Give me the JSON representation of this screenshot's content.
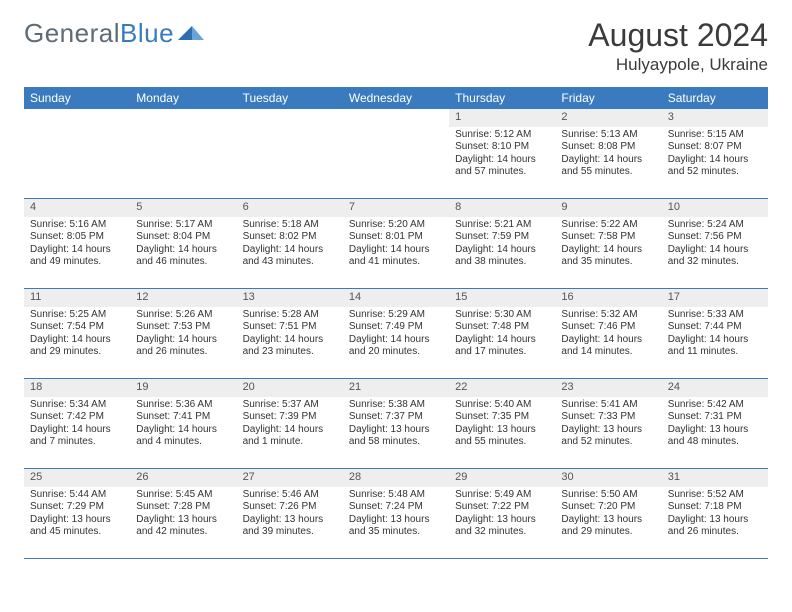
{
  "brand": {
    "text_a": "General",
    "text_b": "Blue"
  },
  "title": "August 2024",
  "location": "Hulyaypole, Ukraine",
  "colors": {
    "header_bar": "#3a7bbf",
    "daynum_bg": "#eeeeee",
    "cell_border": "#3a7bbf",
    "text": "#333333",
    "logo_grey": "#5f6b74",
    "logo_blue": "#3a7bbf"
  },
  "dow": [
    "Sunday",
    "Monday",
    "Tuesday",
    "Wednesday",
    "Thursday",
    "Friday",
    "Saturday"
  ],
  "leading_blanks": 4,
  "days": [
    {
      "n": 1,
      "sunrise": "5:12 AM",
      "sunset": "8:10 PM",
      "daylight": "14 hours and 57 minutes."
    },
    {
      "n": 2,
      "sunrise": "5:13 AM",
      "sunset": "8:08 PM",
      "daylight": "14 hours and 55 minutes."
    },
    {
      "n": 3,
      "sunrise": "5:15 AM",
      "sunset": "8:07 PM",
      "daylight": "14 hours and 52 minutes."
    },
    {
      "n": 4,
      "sunrise": "5:16 AM",
      "sunset": "8:05 PM",
      "daylight": "14 hours and 49 minutes."
    },
    {
      "n": 5,
      "sunrise": "5:17 AM",
      "sunset": "8:04 PM",
      "daylight": "14 hours and 46 minutes."
    },
    {
      "n": 6,
      "sunrise": "5:18 AM",
      "sunset": "8:02 PM",
      "daylight": "14 hours and 43 minutes."
    },
    {
      "n": 7,
      "sunrise": "5:20 AM",
      "sunset": "8:01 PM",
      "daylight": "14 hours and 41 minutes."
    },
    {
      "n": 8,
      "sunrise": "5:21 AM",
      "sunset": "7:59 PM",
      "daylight": "14 hours and 38 minutes."
    },
    {
      "n": 9,
      "sunrise": "5:22 AM",
      "sunset": "7:58 PM",
      "daylight": "14 hours and 35 minutes."
    },
    {
      "n": 10,
      "sunrise": "5:24 AM",
      "sunset": "7:56 PM",
      "daylight": "14 hours and 32 minutes."
    },
    {
      "n": 11,
      "sunrise": "5:25 AM",
      "sunset": "7:54 PM",
      "daylight": "14 hours and 29 minutes."
    },
    {
      "n": 12,
      "sunrise": "5:26 AM",
      "sunset": "7:53 PM",
      "daylight": "14 hours and 26 minutes."
    },
    {
      "n": 13,
      "sunrise": "5:28 AM",
      "sunset": "7:51 PM",
      "daylight": "14 hours and 23 minutes."
    },
    {
      "n": 14,
      "sunrise": "5:29 AM",
      "sunset": "7:49 PM",
      "daylight": "14 hours and 20 minutes."
    },
    {
      "n": 15,
      "sunrise": "5:30 AM",
      "sunset": "7:48 PM",
      "daylight": "14 hours and 17 minutes."
    },
    {
      "n": 16,
      "sunrise": "5:32 AM",
      "sunset": "7:46 PM",
      "daylight": "14 hours and 14 minutes."
    },
    {
      "n": 17,
      "sunrise": "5:33 AM",
      "sunset": "7:44 PM",
      "daylight": "14 hours and 11 minutes."
    },
    {
      "n": 18,
      "sunrise": "5:34 AM",
      "sunset": "7:42 PM",
      "daylight": "14 hours and 7 minutes."
    },
    {
      "n": 19,
      "sunrise": "5:36 AM",
      "sunset": "7:41 PM",
      "daylight": "14 hours and 4 minutes."
    },
    {
      "n": 20,
      "sunrise": "5:37 AM",
      "sunset": "7:39 PM",
      "daylight": "14 hours and 1 minute."
    },
    {
      "n": 21,
      "sunrise": "5:38 AM",
      "sunset": "7:37 PM",
      "daylight": "13 hours and 58 minutes."
    },
    {
      "n": 22,
      "sunrise": "5:40 AM",
      "sunset": "7:35 PM",
      "daylight": "13 hours and 55 minutes."
    },
    {
      "n": 23,
      "sunrise": "5:41 AM",
      "sunset": "7:33 PM",
      "daylight": "13 hours and 52 minutes."
    },
    {
      "n": 24,
      "sunrise": "5:42 AM",
      "sunset": "7:31 PM",
      "daylight": "13 hours and 48 minutes."
    },
    {
      "n": 25,
      "sunrise": "5:44 AM",
      "sunset": "7:29 PM",
      "daylight": "13 hours and 45 minutes."
    },
    {
      "n": 26,
      "sunrise": "5:45 AM",
      "sunset": "7:28 PM",
      "daylight": "13 hours and 42 minutes."
    },
    {
      "n": 27,
      "sunrise": "5:46 AM",
      "sunset": "7:26 PM",
      "daylight": "13 hours and 39 minutes."
    },
    {
      "n": 28,
      "sunrise": "5:48 AM",
      "sunset": "7:24 PM",
      "daylight": "13 hours and 35 minutes."
    },
    {
      "n": 29,
      "sunrise": "5:49 AM",
      "sunset": "7:22 PM",
      "daylight": "13 hours and 32 minutes."
    },
    {
      "n": 30,
      "sunrise": "5:50 AM",
      "sunset": "7:20 PM",
      "daylight": "13 hours and 29 minutes."
    },
    {
      "n": 31,
      "sunrise": "5:52 AM",
      "sunset": "7:18 PM",
      "daylight": "13 hours and 26 minutes."
    }
  ],
  "labels": {
    "sunrise": "Sunrise: ",
    "sunset": "Sunset: ",
    "daylight": "Daylight: "
  }
}
